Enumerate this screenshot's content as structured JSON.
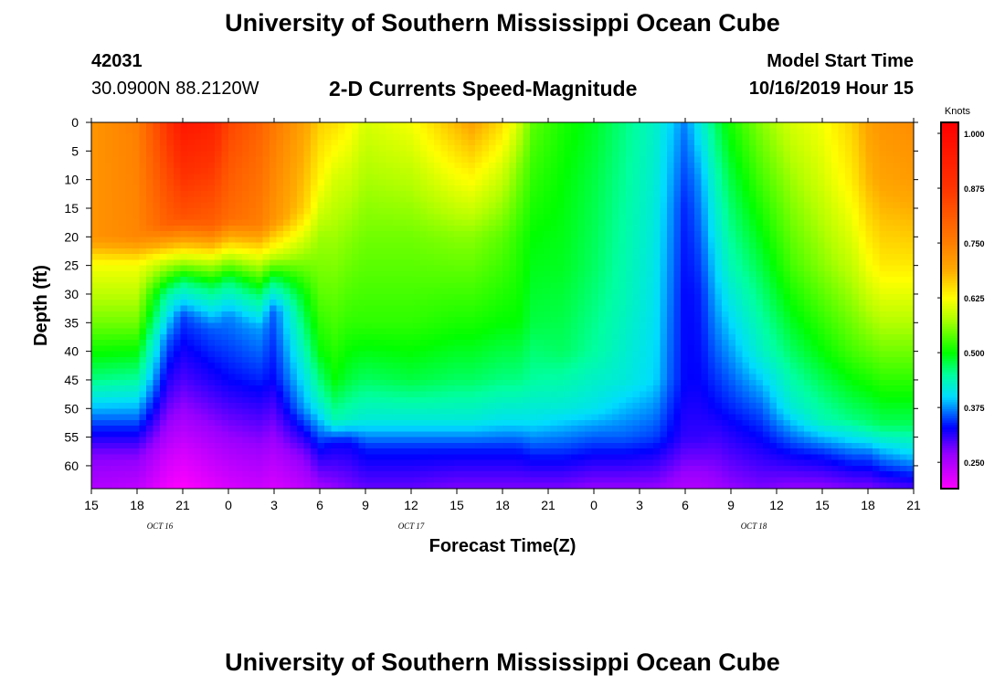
{
  "page": {
    "title_top": "University of Southern Mississippi Ocean Cube",
    "title_bottom": "University of Southern Mississippi Ocean Cube",
    "station_id": "42031",
    "location": "30.0900N 88.2120W",
    "chart_title": "2-D Currents Speed-Magnitude",
    "model_label": "Model Start Time",
    "model_time": "10/16/2019 Hour 15",
    "colorbar_unit": "Knots"
  },
  "chart_data": {
    "type": "heatmap",
    "title": "2-D Currents Speed-Magnitude",
    "xlabel": "Forecast Time(Z)",
    "ylabel": "Depth (ft)",
    "x_range_hours": [
      0,
      54
    ],
    "ylim": [
      0,
      64
    ],
    "y_ticks": [
      0,
      5,
      10,
      15,
      20,
      25,
      30,
      35,
      40,
      45,
      50,
      55,
      60
    ],
    "x_ticks": [
      {
        "hour": 0,
        "label": "15"
      },
      {
        "hour": 3,
        "label": "18"
      },
      {
        "hour": 6,
        "label": "21"
      },
      {
        "hour": 9,
        "label": "0"
      },
      {
        "hour": 12,
        "label": "3"
      },
      {
        "hour": 15,
        "label": "6"
      },
      {
        "hour": 18,
        "label": "9"
      },
      {
        "hour": 21,
        "label": "12"
      },
      {
        "hour": 24,
        "label": "15"
      },
      {
        "hour": 27,
        "label": "18"
      },
      {
        "hour": 30,
        "label": "21"
      },
      {
        "hour": 33,
        "label": "0"
      },
      {
        "hour": 36,
        "label": "3"
      },
      {
        "hour": 39,
        "label": "6"
      },
      {
        "hour": 42,
        "label": "9"
      },
      {
        "hour": 45,
        "label": "12"
      },
      {
        "hour": 48,
        "label": "15"
      },
      {
        "hour": 51,
        "label": "18"
      },
      {
        "hour": 54,
        "label": "21"
      }
    ],
    "date_labels": [
      {
        "hour": 4.5,
        "label": "OCT 16"
      },
      {
        "hour": 21,
        "label": "OCT 17"
      },
      {
        "hour": 43.5,
        "label": "OCT 18"
      }
    ],
    "colorbar": {
      "unit": "Knots",
      "range": [
        0.19,
        1.025
      ],
      "ticks": [
        {
          "value": 1.0,
          "label": "1.000"
        },
        {
          "value": 0.875,
          "label": "0.875"
        },
        {
          "value": 0.75,
          "label": "0.750"
        },
        {
          "value": 0.625,
          "label": "0.625"
        },
        {
          "value": 0.5,
          "label": "0.500"
        },
        {
          "value": 0.375,
          "label": "0.375"
        },
        {
          "value": 0.25,
          "label": "0.250"
        }
      ]
    },
    "profiles": [
      {
        "hour": 0,
        "depths": [
          0,
          20,
          25,
          35,
          45,
          52,
          58,
          64
        ],
        "speeds": [
          0.72,
          0.72,
          0.62,
          0.55,
          0.46,
          0.36,
          0.28,
          0.25
        ]
      },
      {
        "hour": 3,
        "depths": [
          0,
          20,
          25,
          35,
          45,
          52,
          58,
          64
        ],
        "speeds": [
          0.75,
          0.74,
          0.62,
          0.55,
          0.45,
          0.36,
          0.28,
          0.24
        ]
      },
      {
        "hour": 5,
        "depths": [
          0,
          18,
          24,
          30,
          38,
          48,
          58,
          64
        ],
        "speeds": [
          0.88,
          0.8,
          0.6,
          0.45,
          0.36,
          0.3,
          0.23,
          0.2
        ]
      },
      {
        "hour": 6,
        "depths": [
          0,
          17,
          23,
          28,
          34,
          45,
          58,
          64
        ],
        "speeds": [
          0.96,
          0.82,
          0.62,
          0.46,
          0.35,
          0.3,
          0.22,
          0.19
        ]
      },
      {
        "hour": 8,
        "depths": [
          0,
          18,
          24,
          29,
          36,
          45,
          58,
          64
        ],
        "speeds": [
          0.93,
          0.8,
          0.6,
          0.47,
          0.36,
          0.32,
          0.24,
          0.21
        ]
      },
      {
        "hour": 9,
        "depths": [
          0,
          17,
          23,
          28,
          34,
          45,
          58,
          64
        ],
        "speeds": [
          0.85,
          0.78,
          0.6,
          0.46,
          0.37,
          0.33,
          0.25,
          0.22
        ]
      },
      {
        "hour": 11,
        "depths": [
          0,
          18,
          24,
          30,
          36,
          45,
          58,
          64
        ],
        "speeds": [
          0.8,
          0.75,
          0.6,
          0.47,
          0.38,
          0.34,
          0.26,
          0.23
        ]
      },
      {
        "hour": 12,
        "depths": [
          0,
          17,
          23,
          28,
          33,
          45,
          58,
          64
        ],
        "speeds": [
          0.76,
          0.72,
          0.6,
          0.46,
          0.36,
          0.33,
          0.25,
          0.22
        ]
      },
      {
        "hour": 14,
        "depths": [
          0,
          15,
          22,
          30,
          40,
          50,
          58,
          64
        ],
        "speeds": [
          0.7,
          0.66,
          0.58,
          0.5,
          0.44,
          0.38,
          0.28,
          0.24
        ]
      },
      {
        "hour": 15,
        "depths": [
          0,
          10,
          20,
          30,
          40,
          48,
          58,
          64
        ],
        "speeds": [
          0.66,
          0.63,
          0.57,
          0.54,
          0.5,
          0.44,
          0.32,
          0.26
        ]
      },
      {
        "hour": 16,
        "depths": [
          0,
          10,
          20,
          35,
          45,
          52,
          56,
          64
        ],
        "speeds": [
          0.65,
          0.6,
          0.57,
          0.53,
          0.5,
          0.44,
          0.33,
          0.27
        ]
      },
      {
        "hour": 17,
        "depths": [
          0,
          8,
          20,
          35,
          45,
          52,
          56,
          64
        ],
        "speeds": [
          0.63,
          0.6,
          0.56,
          0.52,
          0.48,
          0.43,
          0.33,
          0.28
        ]
      },
      {
        "hour": 18,
        "depths": [
          0,
          8,
          20,
          35,
          45,
          52,
          57,
          64
        ],
        "speeds": [
          0.6,
          0.58,
          0.55,
          0.52,
          0.47,
          0.42,
          0.34,
          0.29
        ]
      },
      {
        "hour": 21,
        "depths": [
          0,
          8,
          20,
          35,
          45,
          52,
          57,
          64
        ],
        "speeds": [
          0.62,
          0.59,
          0.55,
          0.52,
          0.48,
          0.42,
          0.34,
          0.29
        ]
      },
      {
        "hour": 24,
        "depths": [
          0,
          8,
          20,
          35,
          45,
          52,
          57,
          64
        ],
        "speeds": [
          0.68,
          0.63,
          0.56,
          0.51,
          0.47,
          0.42,
          0.34,
          0.28
        ]
      },
      {
        "hour": 25,
        "depths": [
          0,
          8,
          20,
          35,
          45,
          52,
          57,
          64
        ],
        "speeds": [
          0.7,
          0.64,
          0.56,
          0.51,
          0.47,
          0.42,
          0.34,
          0.28
        ]
      },
      {
        "hour": 27,
        "depths": [
          0,
          8,
          20,
          35,
          45,
          52,
          57,
          64
        ],
        "speeds": [
          0.65,
          0.6,
          0.54,
          0.5,
          0.46,
          0.41,
          0.34,
          0.28
        ]
      },
      {
        "hour": 28,
        "depths": [
          0,
          8,
          20,
          35,
          45,
          52,
          57,
          64
        ],
        "speeds": [
          0.6,
          0.56,
          0.52,
          0.5,
          0.46,
          0.41,
          0.34,
          0.28
        ]
      },
      {
        "hour": 29,
        "depths": [
          0,
          10,
          20,
          35,
          45,
          52,
          58,
          64
        ],
        "speeds": [
          0.54,
          0.52,
          0.5,
          0.48,
          0.45,
          0.41,
          0.34,
          0.28
        ]
      },
      {
        "hour": 31,
        "depths": [
          0,
          10,
          25,
          40,
          50,
          58,
          64
        ],
        "speeds": [
          0.51,
          0.5,
          0.49,
          0.47,
          0.42,
          0.34,
          0.28
        ]
      },
      {
        "hour": 33,
        "depths": [
          0,
          10,
          25,
          40,
          50,
          58,
          64
        ],
        "speeds": [
          0.49,
          0.48,
          0.47,
          0.45,
          0.41,
          0.33,
          0.27
        ]
      },
      {
        "hour": 35,
        "depths": [
          0,
          15,
          30,
          45,
          55,
          64
        ],
        "speeds": [
          0.46,
          0.45,
          0.44,
          0.42,
          0.36,
          0.27
        ]
      },
      {
        "hour": 37,
        "depths": [
          0,
          15,
          30,
          45,
          55,
          64
        ],
        "speeds": [
          0.43,
          0.42,
          0.41,
          0.4,
          0.35,
          0.27
        ]
      },
      {
        "hour": 38,
        "depths": [
          0,
          15,
          30,
          45,
          55,
          64
        ],
        "speeds": [
          0.4,
          0.38,
          0.37,
          0.36,
          0.33,
          0.26
        ]
      },
      {
        "hour": 39,
        "depths": [
          0,
          15,
          30,
          45,
          55,
          64
        ],
        "speeds": [
          0.37,
          0.34,
          0.33,
          0.33,
          0.31,
          0.25
        ]
      },
      {
        "hour": 40,
        "depths": [
          0,
          10,
          30,
          45,
          55,
          64
        ],
        "speeds": [
          0.42,
          0.38,
          0.34,
          0.33,
          0.31,
          0.25
        ]
      },
      {
        "hour": 41,
        "depths": [
          0,
          10,
          25,
          40,
          50,
          64
        ],
        "speeds": [
          0.47,
          0.44,
          0.4,
          0.36,
          0.33,
          0.26
        ]
      },
      {
        "hour": 42,
        "depths": [
          0,
          10,
          25,
          40,
          50,
          64
        ],
        "speeds": [
          0.51,
          0.48,
          0.44,
          0.38,
          0.34,
          0.27
        ]
      },
      {
        "hour": 44,
        "depths": [
          0,
          10,
          25,
          40,
          50,
          64
        ],
        "speeds": [
          0.56,
          0.53,
          0.48,
          0.43,
          0.36,
          0.28
        ]
      },
      {
        "hour": 46,
        "depths": [
          0,
          10,
          25,
          40,
          50,
          58,
          64
        ],
        "speeds": [
          0.6,
          0.57,
          0.53,
          0.47,
          0.42,
          0.33,
          0.27
        ]
      },
      {
        "hour": 48,
        "depths": [
          0,
          10,
          25,
          40,
          52,
          58,
          64
        ],
        "speeds": [
          0.62,
          0.6,
          0.56,
          0.5,
          0.44,
          0.34,
          0.27
        ]
      },
      {
        "hour": 50,
        "depths": [
          0,
          10,
          25,
          40,
          52,
          58,
          64
        ],
        "speeds": [
          0.66,
          0.64,
          0.59,
          0.53,
          0.46,
          0.36,
          0.28
        ]
      },
      {
        "hour": 51,
        "depths": [
          0,
          10,
          25,
          40,
          53,
          58,
          64
        ],
        "speeds": [
          0.7,
          0.68,
          0.62,
          0.54,
          0.46,
          0.36,
          0.28
        ]
      },
      {
        "hour": 52,
        "depths": [
          0,
          10,
          25,
          40,
          53,
          58,
          64
        ],
        "speeds": [
          0.72,
          0.7,
          0.64,
          0.55,
          0.47,
          0.38,
          0.29
        ]
      },
      {
        "hour": 54,
        "depths": [
          0,
          10,
          25,
          40,
          53,
          58,
          64
        ],
        "speeds": [
          0.73,
          0.71,
          0.64,
          0.55,
          0.47,
          0.4,
          0.3
        ]
      }
    ]
  }
}
